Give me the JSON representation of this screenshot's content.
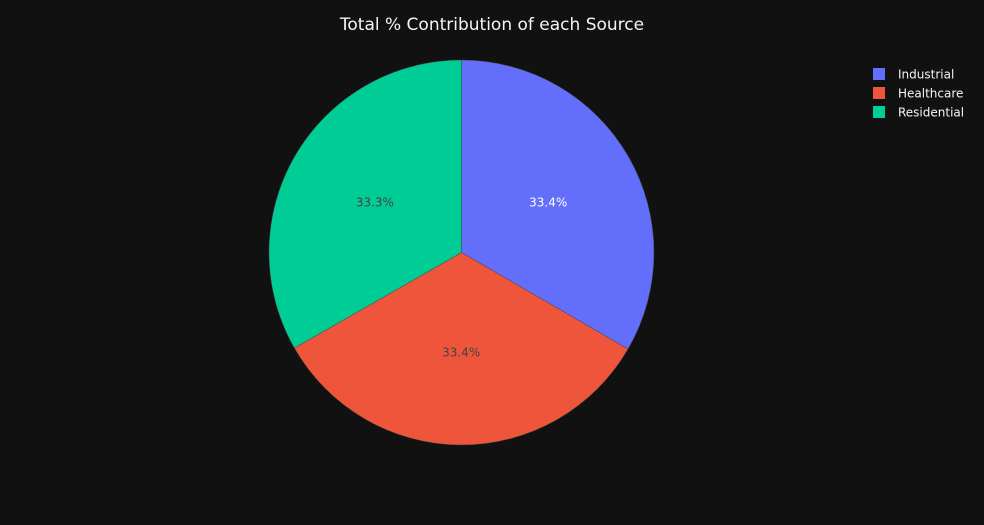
{
  "chart_data": {
    "type": "pie",
    "title": "Total % Contribution of each Source",
    "labels": [
      "Industrial",
      "Healthcare",
      "Residential"
    ],
    "values": [
      33.4,
      33.4,
      33.3
    ],
    "display_labels": [
      "33.4%",
      "33.4%",
      "33.3%"
    ],
    "colors": [
      "#636efa",
      "#ef553b",
      "#00cc96"
    ],
    "label_colors": [
      "#ffffff",
      "#444444",
      "#444444"
    ],
    "direction": "clockwise",
    "start_angle_deg": 90,
    "legend_position": "top-right"
  },
  "colors": {
    "background": "#111111",
    "title_text": "#f2f5fa",
    "legend_text": "#f2f5fa"
  }
}
